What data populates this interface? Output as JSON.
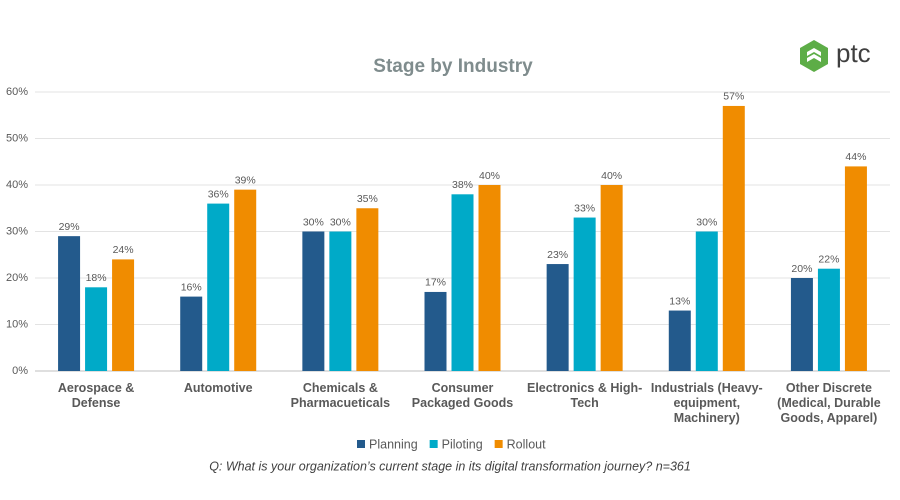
{
  "chart_data": {
    "type": "bar",
    "title": "Stage by Industry",
    "categories": [
      [
        "Aerospace &",
        "Defense"
      ],
      [
        "Automotive"
      ],
      [
        "Chemicals &",
        "Pharmacueticals"
      ],
      [
        "Consumer",
        "Packaged Goods"
      ],
      [
        "Electronics & High-",
        "Tech"
      ],
      [
        "Industrials (Heavy-",
        "equipment,",
        "Machinery)"
      ],
      [
        "Other Discrete",
        "(Medical, Durable",
        "Goods, Apparel)"
      ]
    ],
    "series": [
      {
        "name": "Planning",
        "color": "#235a8c",
        "values": [
          29,
          16,
          30,
          17,
          23,
          13,
          20
        ],
        "value_labels": [
          "29%",
          "16%",
          "30%",
          "17%",
          "23%",
          "13%",
          "20%"
        ]
      },
      {
        "name": "Piloting",
        "color": "#00aac8",
        "values": [
          18,
          36,
          30,
          38,
          33,
          30,
          22
        ],
        "value_labels": [
          "18%",
          "36%",
          "30%",
          "38%",
          "33%",
          "30%",
          "22%"
        ]
      },
      {
        "name": "Rollout",
        "color": "#f08c00",
        "values": [
          24,
          39,
          35,
          40,
          40,
          57,
          44
        ],
        "value_labels": [
          "24%",
          "39%",
          "35%",
          "40%",
          "40%",
          "57%",
          "44%"
        ]
      }
    ],
    "ylim": [
      0,
      60
    ],
    "yticks": [
      {
        "value": 0,
        "label": "0%"
      },
      {
        "value": 10,
        "label": "10%"
      },
      {
        "value": 20,
        "label": "20%"
      },
      {
        "value": 30,
        "label": "30%"
      },
      {
        "value": 40,
        "label": "40%"
      },
      {
        "value": 50,
        "label": "50%"
      },
      {
        "value": 60,
        "label": "60%"
      }
    ],
    "grid": true,
    "legend": "bottom",
    "note": "Q: What is your organization’s current stage in its digital transformation journey? n=361"
  },
  "logo": "ptc"
}
